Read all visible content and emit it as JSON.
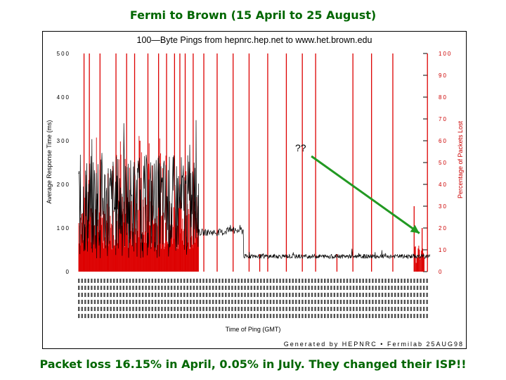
{
  "slide": {
    "title": "Fermi to Brown (15 April to 25 August)",
    "caption": "Packet loss 16.15% in April, 0.05% in July. They changed their ISP!!",
    "annotation": "??"
  },
  "colors": {
    "title_green": "#006600",
    "loss_red": "#dd0000",
    "response_black": "#000000",
    "arrow_green": "#229922"
  },
  "chart_data": {
    "type": "line",
    "title": "100—Byte Pings from hepnrc.hep.net to www.het.brown.edu",
    "xlabel": "Time of Ping (GMT)",
    "ylabel_left": "Average Response Time (ms)",
    "ylabel_right": "Percentage of Packets Lost",
    "footer": "Generated by HEPNRC • Fermilab 25AUG98",
    "ylim_left": [
      0,
      500
    ],
    "ylim_right": [
      0,
      100
    ],
    "yticks_left": [
      "0",
      "100",
      "200",
      "300",
      "400",
      "500"
    ],
    "yticks_right": [
      "0",
      "10",
      "20",
      "30",
      "40",
      "50",
      "60",
      "70",
      "80",
      "90",
      "100"
    ],
    "x_range_days": [
      0,
      132
    ],
    "series": [
      {
        "name": "Average Response Time (ms)",
        "axis": "left",
        "segments": [
          {
            "x_start": 0,
            "x_end": 45,
            "baseline_ms": 150,
            "variation_ms": 120,
            "peak_ms": 430
          },
          {
            "x_start": 45,
            "x_end": 55,
            "baseline_ms": 90,
            "variation_ms": 8,
            "peak_ms": 100
          },
          {
            "x_start": 55,
            "x_end": 62,
            "baseline_ms": 95,
            "variation_ms": 12,
            "peak_ms": 110
          },
          {
            "x_start": 62,
            "x_end": 132,
            "baseline_ms": 35,
            "variation_ms": 5,
            "peak_ms": 55
          }
        ]
      },
      {
        "name": "Percentage of Packets Lost",
        "axis": "right",
        "values_x": [
          2,
          4,
          8,
          11,
          14,
          18,
          21,
          23,
          26,
          30,
          33,
          36,
          38,
          40,
          43,
          47,
          52,
          58,
          64,
          68,
          71,
          78,
          84,
          89,
          97,
          103,
          110,
          118,
          126,
          129,
          131
        ],
        "values_y": [
          100,
          100,
          100,
          45,
          100,
          100,
          100,
          60,
          100,
          100,
          100,
          100,
          100,
          100,
          100,
          100,
          100,
          100,
          100,
          8,
          100,
          100,
          100,
          100,
          8,
          100,
          100,
          100,
          30,
          20,
          100
        ]
      }
    ],
    "grid": false,
    "annotation_arrow": {
      "from_day": 89,
      "to_day": 128,
      "to_loss_pct": 15
    }
  }
}
